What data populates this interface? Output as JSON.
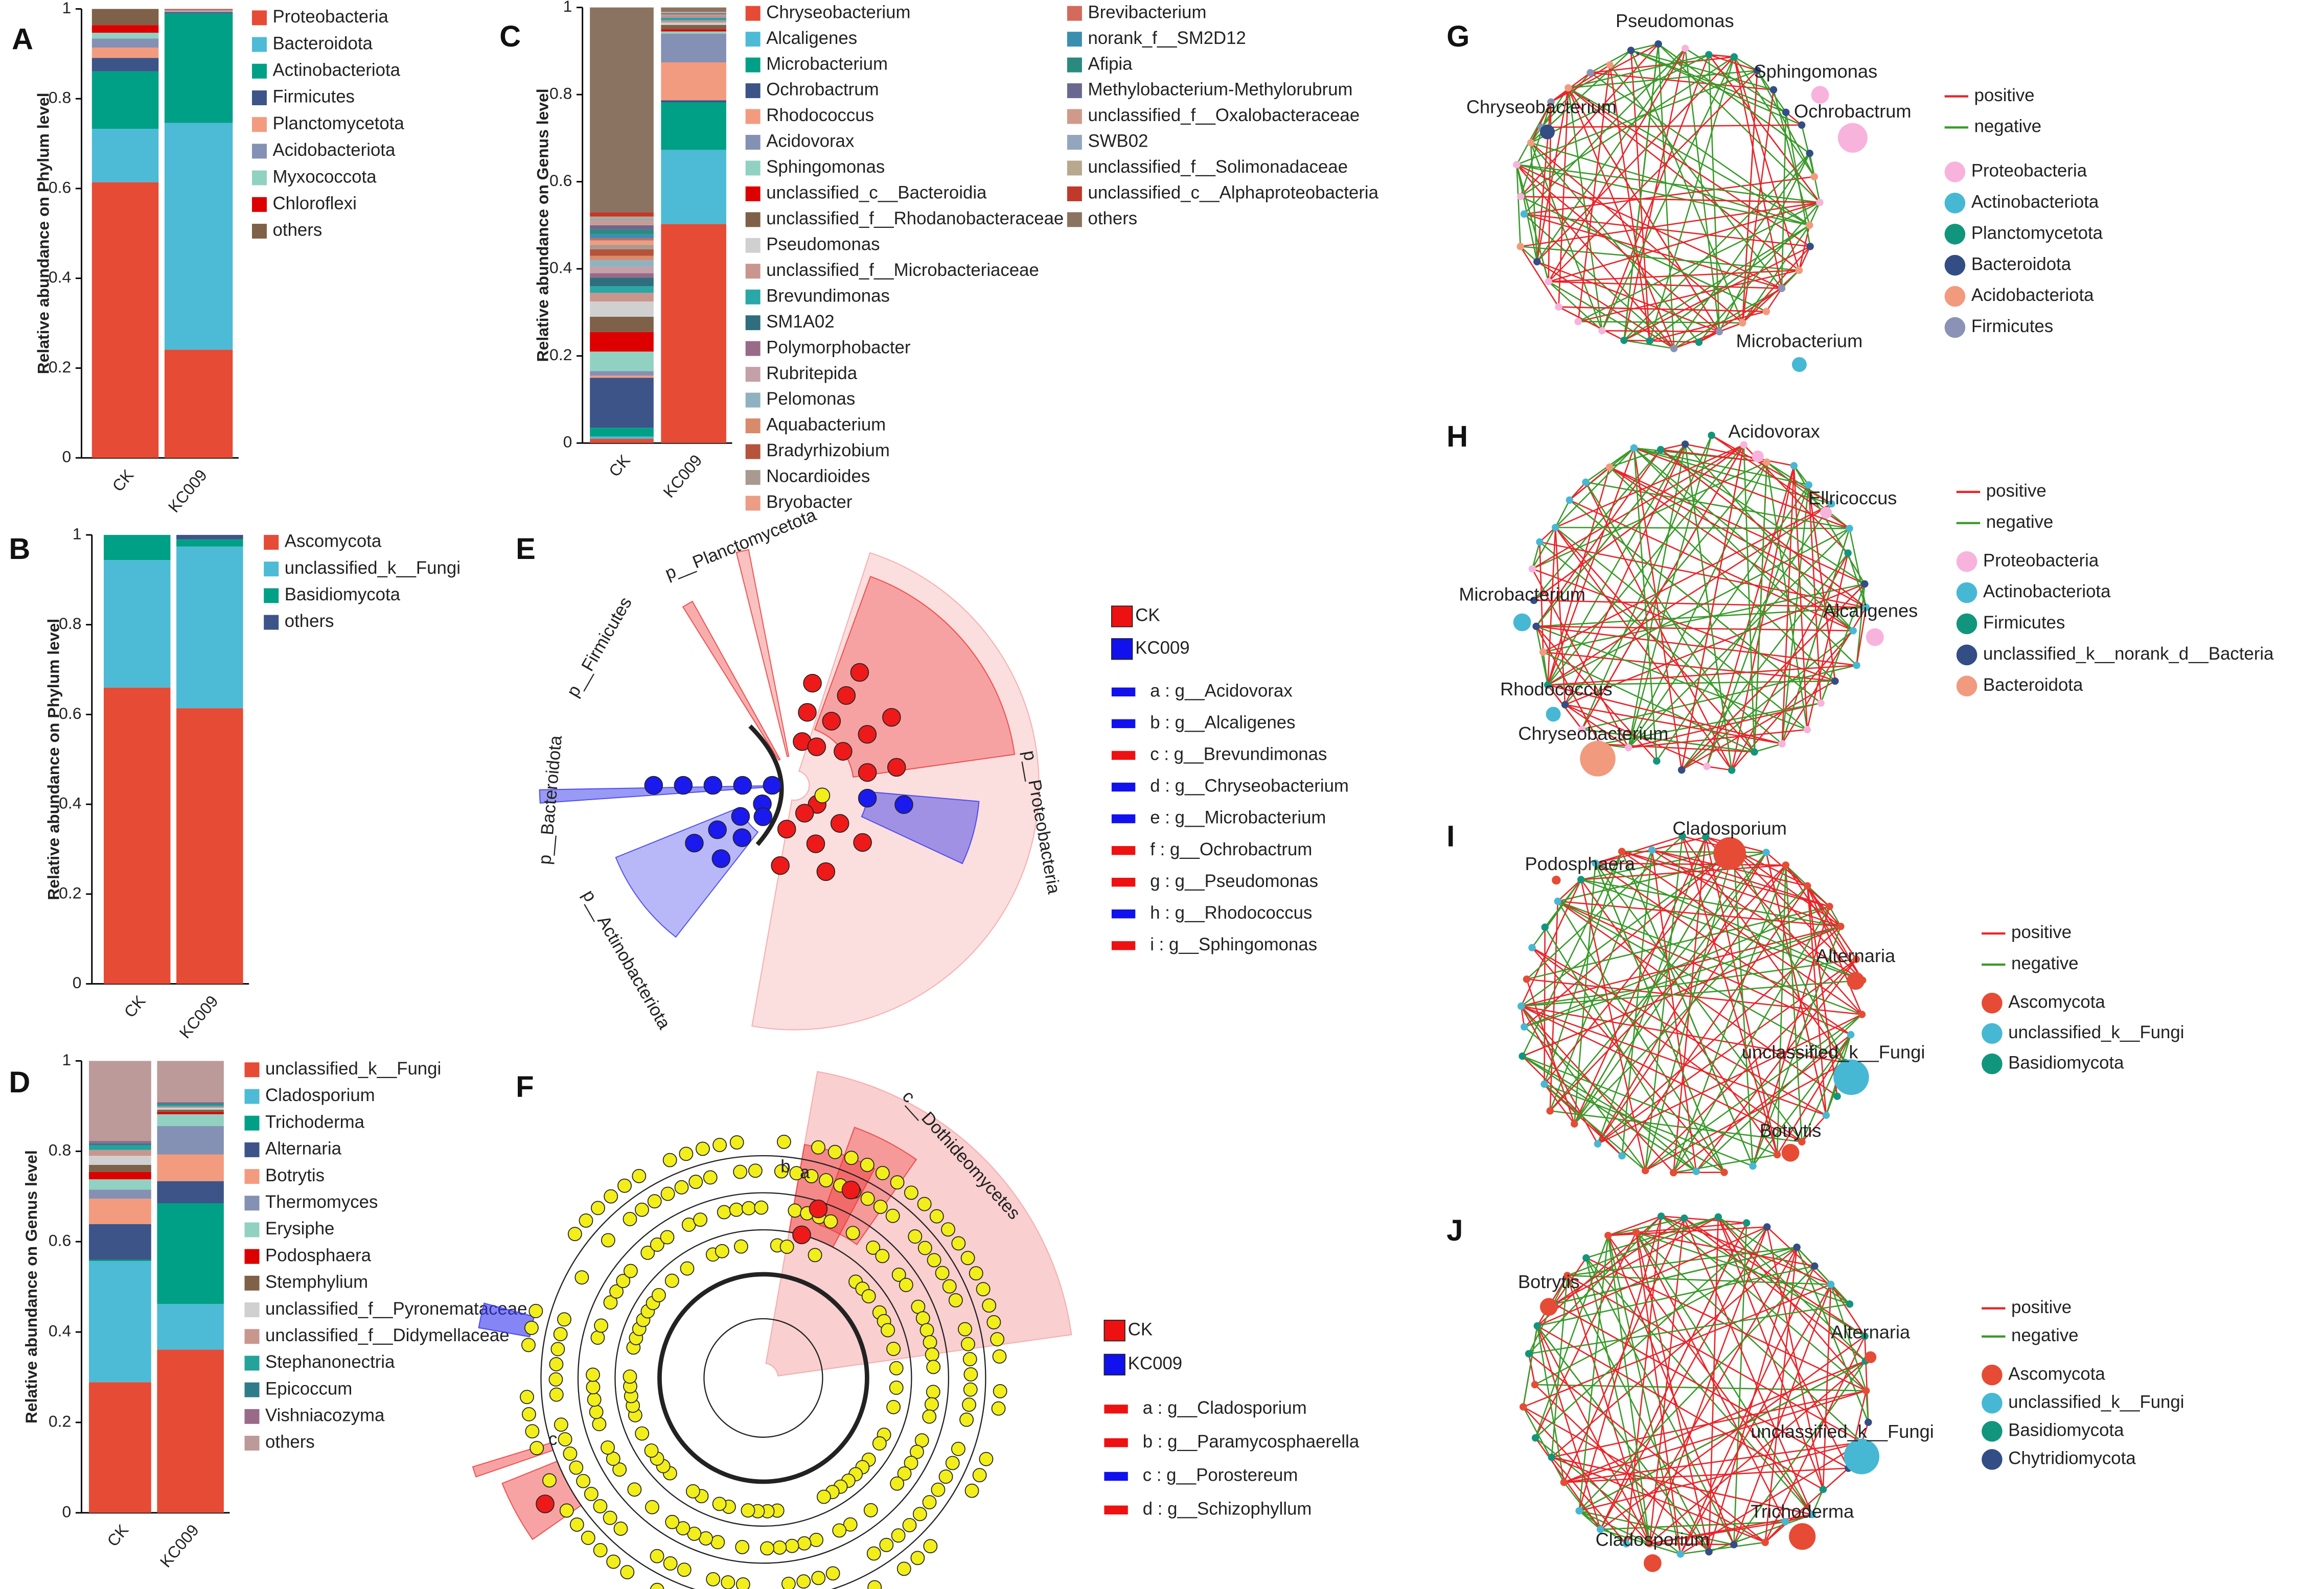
{
  "chart_data": [
    {
      "panel": "A",
      "type": "stacked_bar",
      "ylabel": "Relative abundance on Phylum level",
      "categories": [
        "CK",
        "KC009"
      ],
      "ylim": [
        0,
        1
      ],
      "yticks": [
        0,
        0.2,
        0.4,
        0.6,
        0.8,
        1
      ],
      "series": [
        {
          "name": "Proteobacteria",
          "color": "#e64b35",
          "values": [
            0.614,
            0.241
          ]
        },
        {
          "name": "Bacteroidota",
          "color": "#4dbbd5",
          "values": [
            0.119,
            0.505
          ]
        },
        {
          "name": "Actinobacteriota",
          "color": "#00a087",
          "values": [
            0.128,
            0.244
          ]
        },
        {
          "name": "Firmicutes",
          "color": "#3c5488",
          "values": [
            0.03,
            0.003
          ]
        },
        {
          "name": "Planctomycetota",
          "color": "#f39b7f",
          "values": [
            0.023,
            0.002
          ]
        },
        {
          "name": "Acidobacteriota",
          "color": "#8491b4",
          "values": [
            0.02,
            0.002
          ]
        },
        {
          "name": "Myxococcota",
          "color": "#91d1c2",
          "values": [
            0.013,
            0.001
          ]
        },
        {
          "name": "Chloroflexi",
          "color": "#dc0000",
          "values": [
            0.017,
            0.001
          ]
        },
        {
          "name": "others",
          "color": "#7e6148",
          "values": [
            0.036,
            0.001
          ]
        }
      ]
    },
    {
      "panel": "B",
      "type": "stacked_bar",
      "ylabel": "Relative abundance on Phylum level",
      "categories": [
        "CK",
        "KC009"
      ],
      "ylim": [
        0,
        1
      ],
      "yticks": [
        0,
        0.2,
        0.4,
        0.6,
        0.8,
        1
      ],
      "series": [
        {
          "name": "Ascomycota",
          "color": "#e64b35",
          "values": [
            0.66,
            0.614
          ]
        },
        {
          "name": "unclassified_k__Fungi",
          "color": "#4dbbd5",
          "values": [
            0.284,
            0.36
          ]
        },
        {
          "name": "Basidiomycota",
          "color": "#00a087",
          "values": [
            0.056,
            0.016
          ]
        },
        {
          "name": "others",
          "color": "#3c5488",
          "values": [
            0,
            0.01
          ]
        }
      ]
    },
    {
      "panel": "C",
      "type": "stacked_bar",
      "ylabel": "Relative abundance on Genus level",
      "categories": [
        "CK",
        "KC009"
      ],
      "ylim": [
        0,
        1
      ],
      "yticks": [
        0,
        0.2,
        0.4,
        0.6,
        0.8,
        1
      ],
      "series": [
        {
          "name": "Chryseobacterium",
          "color": "#e64b35",
          "values": [
            0.01,
            0.503
          ]
        },
        {
          "name": "Alcaligenes",
          "color": "#4dbbd5",
          "values": [
            0.005,
            0.17
          ]
        },
        {
          "name": "Microbacterium",
          "color": "#00a087",
          "values": [
            0.02,
            0.109
          ]
        },
        {
          "name": "Ochrobactrum",
          "color": "#3c5488",
          "values": [
            0.115,
            0.005
          ]
        },
        {
          "name": "Rhodococcus",
          "color": "#f39b7f",
          "values": [
            0.005,
            0.087
          ]
        },
        {
          "name": "Acidovorax",
          "color": "#8491b4",
          "values": [
            0.01,
            0.066
          ]
        },
        {
          "name": "Sphingomonas",
          "color": "#91d1c2",
          "values": [
            0.045,
            0.005
          ]
        },
        {
          "name": "unclassified_c__Bacteroidia",
          "color": "#dc0000",
          "values": [
            0.045,
            0.005
          ]
        },
        {
          "name": "unclassified_f__Rhodanobacteraceae",
          "color": "#7e6148",
          "values": [
            0.035,
            0.01
          ]
        },
        {
          "name": "Pseudomonas",
          "color": "#d0d0d0",
          "values": [
            0.035,
            0.005
          ]
        },
        {
          "name": "unclassified_f__Microbacteriaceae",
          "color": "#c9968e",
          "values": [
            0.02,
            0.005
          ]
        },
        {
          "name": "Brevundimonas",
          "color": "#2aa7a7",
          "values": [
            0.015,
            0.005
          ]
        },
        {
          "name": "SM1A02",
          "color": "#2e6e7e",
          "values": [
            0.02,
            0.001
          ]
        },
        {
          "name": "Polymorphobacter",
          "color": "#9a6a89",
          "values": [
            0.01,
            0.001
          ]
        },
        {
          "name": "Rubritepida",
          "color": "#c4a0a8",
          "values": [
            0.015,
            0.001
          ]
        },
        {
          "name": "Pelomonas",
          "color": "#8fb2c0",
          "values": [
            0.015,
            0.001
          ]
        },
        {
          "name": "Aquabacterium",
          "color": "#d98a6a",
          "values": [
            0.01,
            0.001
          ]
        },
        {
          "name": "Bradyrhizobium",
          "color": "#b5533c",
          "values": [
            0.015,
            0.001
          ]
        },
        {
          "name": "Nocardioides",
          "color": "#a89a8e",
          "values": [
            0.01,
            0.001
          ]
        },
        {
          "name": "Bryobacter",
          "color": "#eb9d85",
          "values": [
            0.01,
            0.001
          ]
        },
        {
          "name": "Brevibacterium",
          "color": "#d46a5a",
          "values": [
            0.005,
            0.001
          ]
        },
        {
          "name": "norank_f__SM2D12",
          "color": "#3a8fb0",
          "values": [
            0.01,
            0.001
          ]
        },
        {
          "name": "Afipia",
          "color": "#2a8a7e",
          "values": [
            0.01,
            0.001
          ]
        },
        {
          "name": "Methylobacterium-Methylorubrum",
          "color": "#6b6890",
          "values": [
            0.01,
            0.001
          ]
        },
        {
          "name": "unclassified_f__Oxalobacteraceae",
          "color": "#d09a8a",
          "values": [
            0.01,
            0.001
          ]
        },
        {
          "name": "SWB02",
          "color": "#94a6be",
          "values": [
            0.005,
            0.001
          ]
        },
        {
          "name": "unclassified_f__Solimonadaceae",
          "color": "#b8a88e",
          "values": [
            0.005,
            0.001
          ]
        },
        {
          "name": "unclassified_c__Alphaproteobacteria",
          "color": "#c0392b",
          "values": [
            0.01,
            0.001
          ]
        },
        {
          "name": "others",
          "color": "#8b7361",
          "values": [
            0.47,
            0.009
          ]
        }
      ]
    },
    {
      "panel": "D",
      "type": "stacked_bar",
      "ylabel": "Relative abundance on Genus level",
      "categories": [
        "CK",
        "KC009"
      ],
      "ylim": [
        0,
        1
      ],
      "yticks": [
        0,
        0.2,
        0.4,
        0.6,
        0.8,
        1
      ],
      "series": [
        {
          "name": "unclassified_k__Fungi",
          "color": "#e64b35",
          "values": [
            0.289,
            0.361
          ]
        },
        {
          "name": "Cladosporium",
          "color": "#4dbbd5",
          "values": [
            0.268,
            0.101
          ]
        },
        {
          "name": "Trichoderma",
          "color": "#00a087",
          "values": [
            0.003,
            0.223
          ]
        },
        {
          "name": "Alternaria",
          "color": "#3c5488",
          "values": [
            0.079,
            0.049
          ]
        },
        {
          "name": "Botrytis",
          "color": "#f39b7f",
          "values": [
            0.056,
            0.059
          ]
        },
        {
          "name": "Thermomyces",
          "color": "#8491b4",
          "values": [
            0.02,
            0.063
          ]
        },
        {
          "name": "Erysiphe",
          "color": "#91d1c2",
          "values": [
            0.023,
            0.026
          ]
        },
        {
          "name": "Podosphaera",
          "color": "#dc0000",
          "values": [
            0.016,
            0.005
          ]
        },
        {
          "name": "Stemphylium",
          "color": "#7e6148",
          "values": [
            0.016,
            0.005
          ]
        },
        {
          "name": "unclassified_f__Pyronemataceae",
          "color": "#d0d0d0",
          "values": [
            0.02,
            0.004
          ]
        },
        {
          "name": "unclassified_f__Didymellaceae",
          "color": "#c9968e",
          "values": [
            0.013,
            0.003
          ]
        },
        {
          "name": "Stephanonectria",
          "color": "#23a39c",
          "values": [
            0.01,
            0.004
          ]
        },
        {
          "name": "Epicoccum",
          "color": "#2e7c8a",
          "values": [
            0.005,
            0.003
          ]
        },
        {
          "name": "Vishniacozyma",
          "color": "#9a6a89",
          "values": [
            0.005,
            0.003
          ]
        },
        {
          "name": "others",
          "color": "#bc9a9a",
          "values": [
            0.177,
            0.091
          ]
        }
      ]
    },
    {
      "panel": "E",
      "type": "cladogram",
      "groups": [
        {
          "name": "CK",
          "color": "#ee1111"
        },
        {
          "name": "KC009",
          "color": "#1111ee"
        }
      ],
      "biomarkers": [
        {
          "label": "a : g__Acidovorax",
          "color": "#1111ee"
        },
        {
          "label": "b : g__Alcaligenes",
          "color": "#1111ee"
        },
        {
          "label": "c : g__Brevundimonas",
          "color": "#ee1111"
        },
        {
          "label": "d : g__Chryseobacterium",
          "color": "#1111ee"
        },
        {
          "label": "e : g__Microbacterium",
          "color": "#1111ee"
        },
        {
          "label": "f : g__Ochrobactrum",
          "color": "#ee1111"
        },
        {
          "label": "g : g__Pseudomonas",
          "color": "#ee1111"
        },
        {
          "label": "h : g__Rhodococcus",
          "color": "#1111ee"
        },
        {
          "label": "i : g__Sphingomonas",
          "color": "#ee1111"
        }
      ],
      "clade_labels": [
        "p__Planctomycetota",
        "p__Firmicutes",
        "p__Bacteroidota",
        "p__Actinobacteriota",
        "p__Proteobacteria"
      ]
    },
    {
      "panel": "F",
      "type": "cladogram",
      "groups": [
        {
          "name": "CK",
          "color": "#ee1111"
        },
        {
          "name": "KC009",
          "color": "#1111ee"
        }
      ],
      "biomarkers": [
        {
          "label": "a : g__Cladosporium",
          "color": "#ee1111"
        },
        {
          "label": "b : g__Paramycosphaerella",
          "color": "#ee1111"
        },
        {
          "label": "c : g__Porostereum",
          "color": "#1111ee"
        },
        {
          "label": "d : g__Schizophyllum",
          "color": "#ee1111"
        }
      ],
      "clade_labels": [
        "c__Dothideomycetes"
      ],
      "node_letters": [
        "b",
        "a",
        "c"
      ]
    },
    {
      "panel": "G",
      "type": "network",
      "edge_legend": [
        {
          "name": "positive",
          "color": "#e8262a"
        },
        {
          "name": "negative",
          "color": "#3a9a2a"
        }
      ],
      "phyla": [
        {
          "name": "Proteobacteria",
          "color": "#f7b3dc"
        },
        {
          "name": "Actinobacteriota",
          "color": "#46b8d4"
        },
        {
          "name": "Planctomycetota",
          "color": "#11967d"
        },
        {
          "name": "Bacteroidota",
          "color": "#334d85"
        },
        {
          "name": "Acidobacteriota",
          "color": "#f29a7e"
        },
        {
          "name": "Firmicutes",
          "color": "#8a93b5"
        }
      ],
      "node_labels": [
        "Pseudomonas",
        "Sphingomonas",
        "Ochrobactrum",
        "Chryseobacterium",
        "Microbacterium"
      ]
    },
    {
      "panel": "H",
      "type": "network",
      "edge_legend": [
        {
          "name": "positive",
          "color": "#e8262a"
        },
        {
          "name": "negative",
          "color": "#3a9a2a"
        }
      ],
      "phyla": [
        {
          "name": "Proteobacteria",
          "color": "#f7b3dc"
        },
        {
          "name": "Actinobacteriota",
          "color": "#46b8d4"
        },
        {
          "name": "Firmicutes",
          "color": "#11967d"
        },
        {
          "name": "unclassified_k__norank_d__Bacteria",
          "color": "#334d85"
        },
        {
          "name": "Bacteroidota",
          "color": "#f29a7e"
        }
      ],
      "node_labels": [
        "Acidovorax",
        "Ellricoccus",
        "Microbacterium",
        "Alcaligenes",
        "Rhodococcus",
        "Chryseobacterium"
      ]
    },
    {
      "panel": "I",
      "type": "network",
      "edge_legend": [
        {
          "name": "positive",
          "color": "#e8262a"
        },
        {
          "name": "negative",
          "color": "#3a9a2a"
        }
      ],
      "phyla": [
        {
          "name": "Ascomycota",
          "color": "#e64b35"
        },
        {
          "name": "unclassified_k__Fungi",
          "color": "#46b8d4"
        },
        {
          "name": "Basidiomycota",
          "color": "#11967d"
        }
      ],
      "node_labels": [
        "Cladosporium",
        "Podosphaera",
        "Alternaria",
        "unclassified_k__Fungi",
        "Botrytis"
      ]
    },
    {
      "panel": "J",
      "type": "network",
      "edge_legend": [
        {
          "name": "positive",
          "color": "#e8262a"
        },
        {
          "name": "negative",
          "color": "#3a9a2a"
        }
      ],
      "phyla": [
        {
          "name": "Ascomycota",
          "color": "#e64b35"
        },
        {
          "name": "unclassified_k__Fungi",
          "color": "#46b8d4"
        },
        {
          "name": "Basidiomycota",
          "color": "#11967d"
        },
        {
          "name": "Chytridiomycota",
          "color": "#334d85"
        }
      ],
      "node_labels": [
        "Botrytis",
        "Alternaria",
        "unclassified_k__Fungi",
        "Trichoderma",
        "Cladosporium"
      ]
    }
  ]
}
